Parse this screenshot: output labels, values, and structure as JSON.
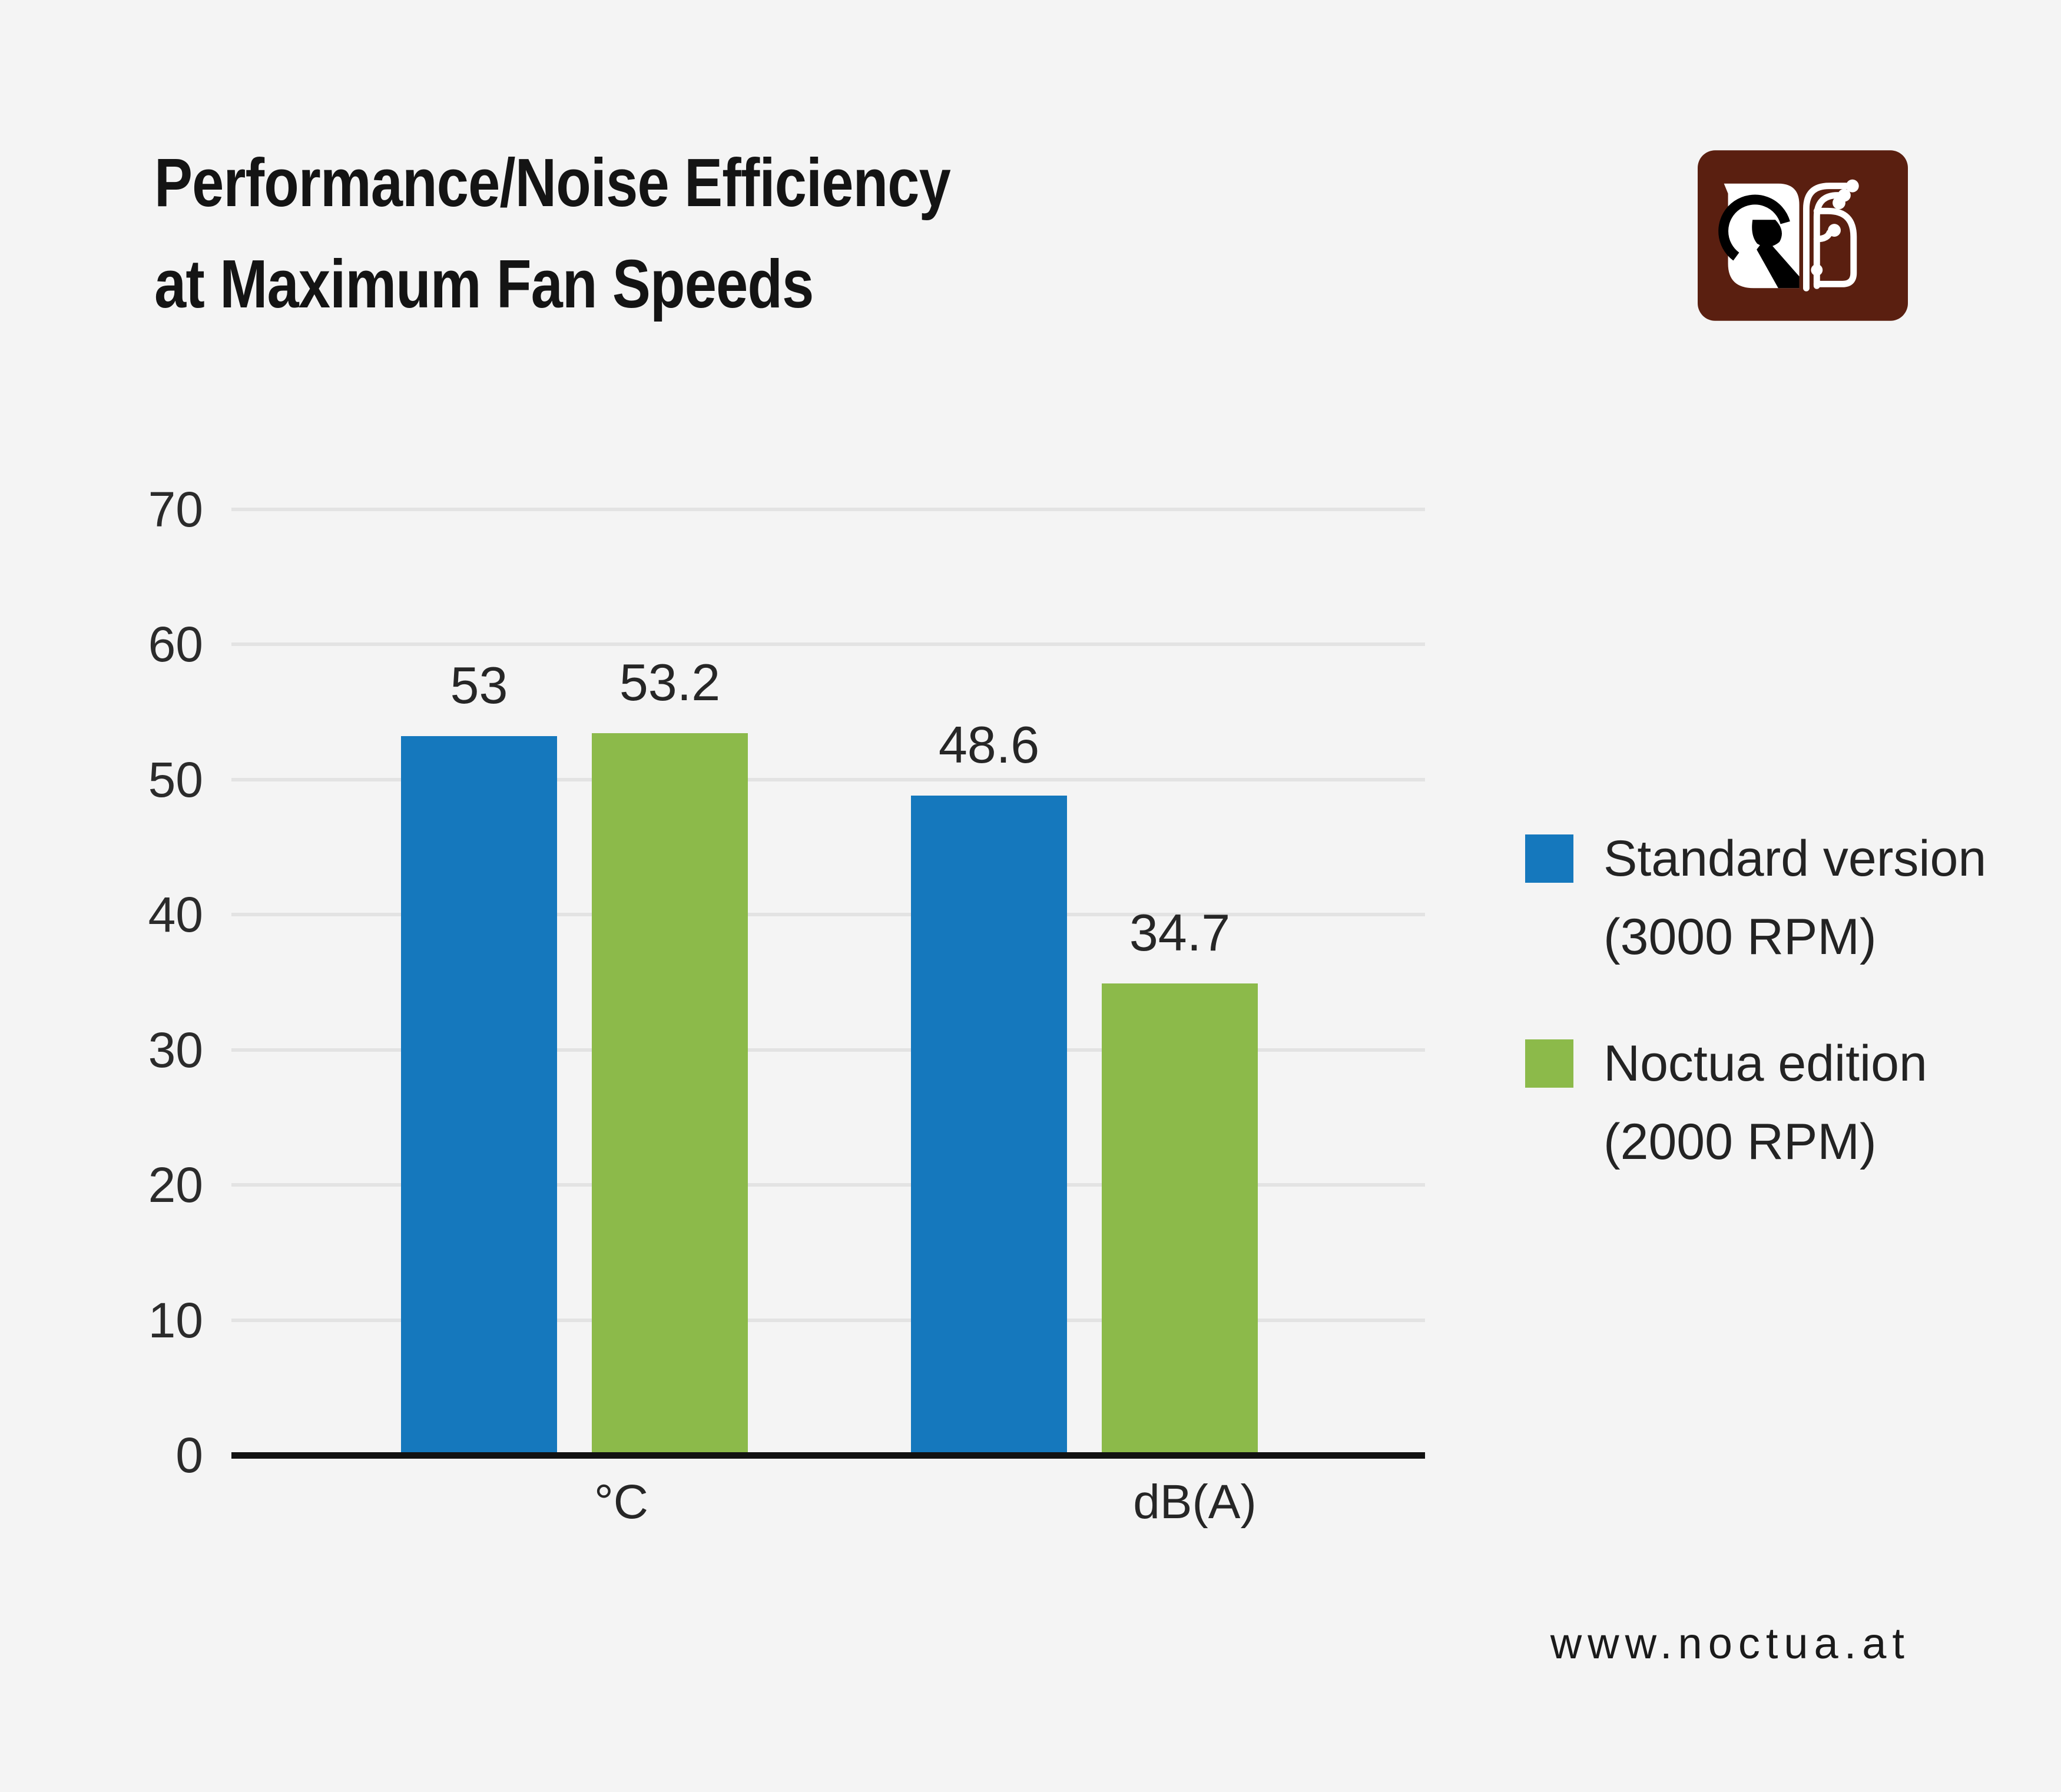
{
  "title": {
    "line1": "Performance/Noise Efficiency",
    "line2": "at Maximum Fan Speeds"
  },
  "branding": {
    "logo": "noctua-owl-fan-logo",
    "url": "www.noctua.at"
  },
  "colors": {
    "background": "#f4f4f4",
    "gridline": "#e3e3e3",
    "axis": "#121212",
    "text": "#2b2b2b",
    "blue": "#1578BD",
    "green": "#8CBA4A",
    "logo_brown": "#5A1F10"
  },
  "chart_data": {
    "type": "bar",
    "categories": [
      "°C",
      "dB(A)"
    ],
    "series": [
      {
        "name": "Standard version (3000 RPM)",
        "color": "#1578BD",
        "values": [
          53,
          48.6
        ],
        "value_labels": [
          "53",
          "48.6"
        ]
      },
      {
        "name": "Noctua edition (2000 RPM)",
        "color": "#8CBA4A",
        "values": [
          53.2,
          34.7
        ],
        "value_labels": [
          "53.2",
          "34.7"
        ]
      }
    ],
    "ylim": [
      0,
      70
    ],
    "yticks": [
      0,
      10,
      20,
      30,
      40,
      50,
      60,
      70
    ],
    "grid": true,
    "legend_position": "right"
  },
  "legend": [
    {
      "line1": "Standard version",
      "line2": "(3000 RPM)",
      "color": "#1578BD"
    },
    {
      "line1": "Noctua edition",
      "line2": "(2000 RPM)",
      "color": "#8CBA4A"
    }
  ]
}
